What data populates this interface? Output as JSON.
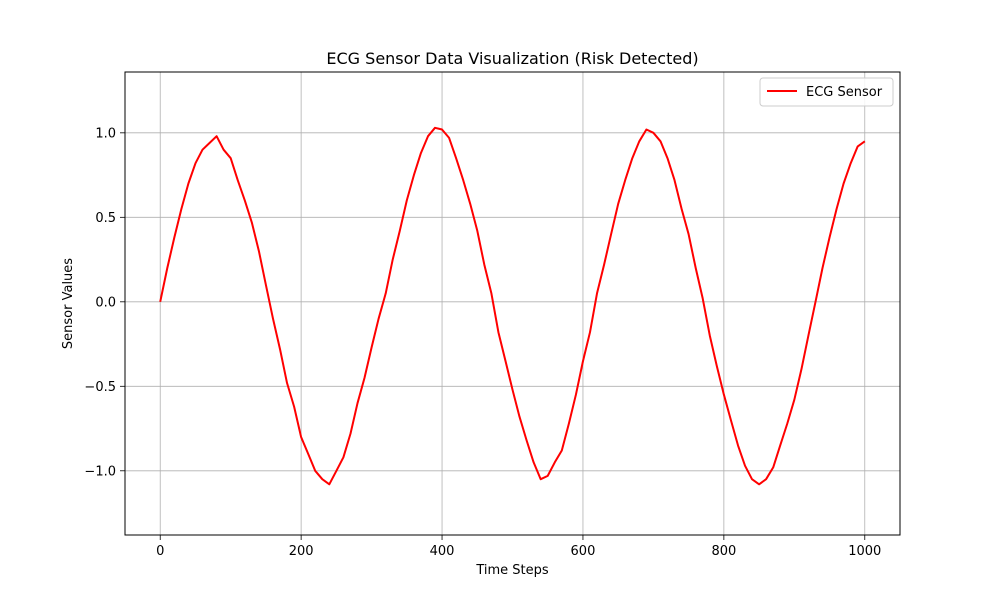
{
  "chart_data": {
    "type": "line",
    "title": "ECG Sensor Data Visualization (Risk Detected)",
    "xlabel": "Time Steps",
    "ylabel": "Sensor Values",
    "xlim": [
      -50,
      1050
    ],
    "ylim": [
      -1.38,
      1.36
    ],
    "xticks": [
      0,
      200,
      400,
      600,
      800,
      1000
    ],
    "yticks": [
      -1.0,
      -0.5,
      0.0,
      0.5,
      1.0
    ],
    "xtick_labels": [
      "0",
      "200",
      "400",
      "600",
      "800",
      "1000"
    ],
    "ytick_labels": [
      "−1.0",
      "−0.5",
      "0.0",
      "0.5",
      "1.0"
    ],
    "grid": true,
    "legend_position": "top-right",
    "series": [
      {
        "name": "ECG Sensor",
        "color": "#ff0000",
        "x": [
          0,
          10,
          20,
          30,
          40,
          50,
          60,
          70,
          80,
          90,
          100,
          110,
          120,
          130,
          140,
          150,
          160,
          170,
          180,
          190,
          200,
          210,
          220,
          230,
          240,
          250,
          260,
          270,
          280,
          290,
          300,
          310,
          320,
          330,
          340,
          350,
          360,
          370,
          380,
          390,
          400,
          410,
          420,
          430,
          440,
          450,
          460,
          470,
          480,
          490,
          500,
          510,
          520,
          530,
          540,
          550,
          560,
          570,
          580,
          590,
          600,
          610,
          620,
          630,
          640,
          650,
          660,
          670,
          680,
          690,
          700,
          710,
          720,
          730,
          740,
          750,
          760,
          770,
          780,
          790,
          800,
          810,
          820,
          830,
          840,
          850,
          860,
          870,
          880,
          890,
          900,
          910,
          920,
          930,
          940,
          950,
          960,
          970,
          980,
          990,
          1000
        ],
        "y": [
          0.0,
          0.2,
          0.38,
          0.55,
          0.7,
          0.82,
          0.9,
          0.94,
          0.98,
          0.9,
          0.85,
          0.72,
          0.6,
          0.47,
          0.3,
          0.1,
          -0.1,
          -0.28,
          -0.48,
          -0.62,
          -0.8,
          -0.9,
          -1.0,
          -1.05,
          -1.08,
          -1.0,
          -0.92,
          -0.78,
          -0.6,
          -0.45,
          -0.27,
          -0.1,
          0.05,
          0.25,
          0.42,
          0.6,
          0.75,
          0.88,
          0.98,
          1.03,
          1.02,
          0.97,
          0.85,
          0.72,
          0.58,
          0.42,
          0.22,
          0.05,
          -0.18,
          -0.35,
          -0.52,
          -0.68,
          -0.82,
          -0.95,
          -1.05,
          -1.03,
          -0.95,
          -0.88,
          -0.72,
          -0.55,
          -0.35,
          -0.18,
          0.05,
          0.22,
          0.4,
          0.58,
          0.72,
          0.85,
          0.95,
          1.02,
          1.0,
          0.95,
          0.85,
          0.72,
          0.55,
          0.4,
          0.2,
          0.02,
          -0.2,
          -0.38,
          -0.55,
          -0.7,
          -0.85,
          -0.97,
          -1.05,
          -1.08,
          -1.05,
          -0.98,
          -0.85,
          -0.72,
          -0.58,
          -0.4,
          -0.2,
          0.0,
          0.2,
          0.38,
          0.55,
          0.7,
          0.82,
          0.92,
          0.95
        ]
      }
    ]
  }
}
